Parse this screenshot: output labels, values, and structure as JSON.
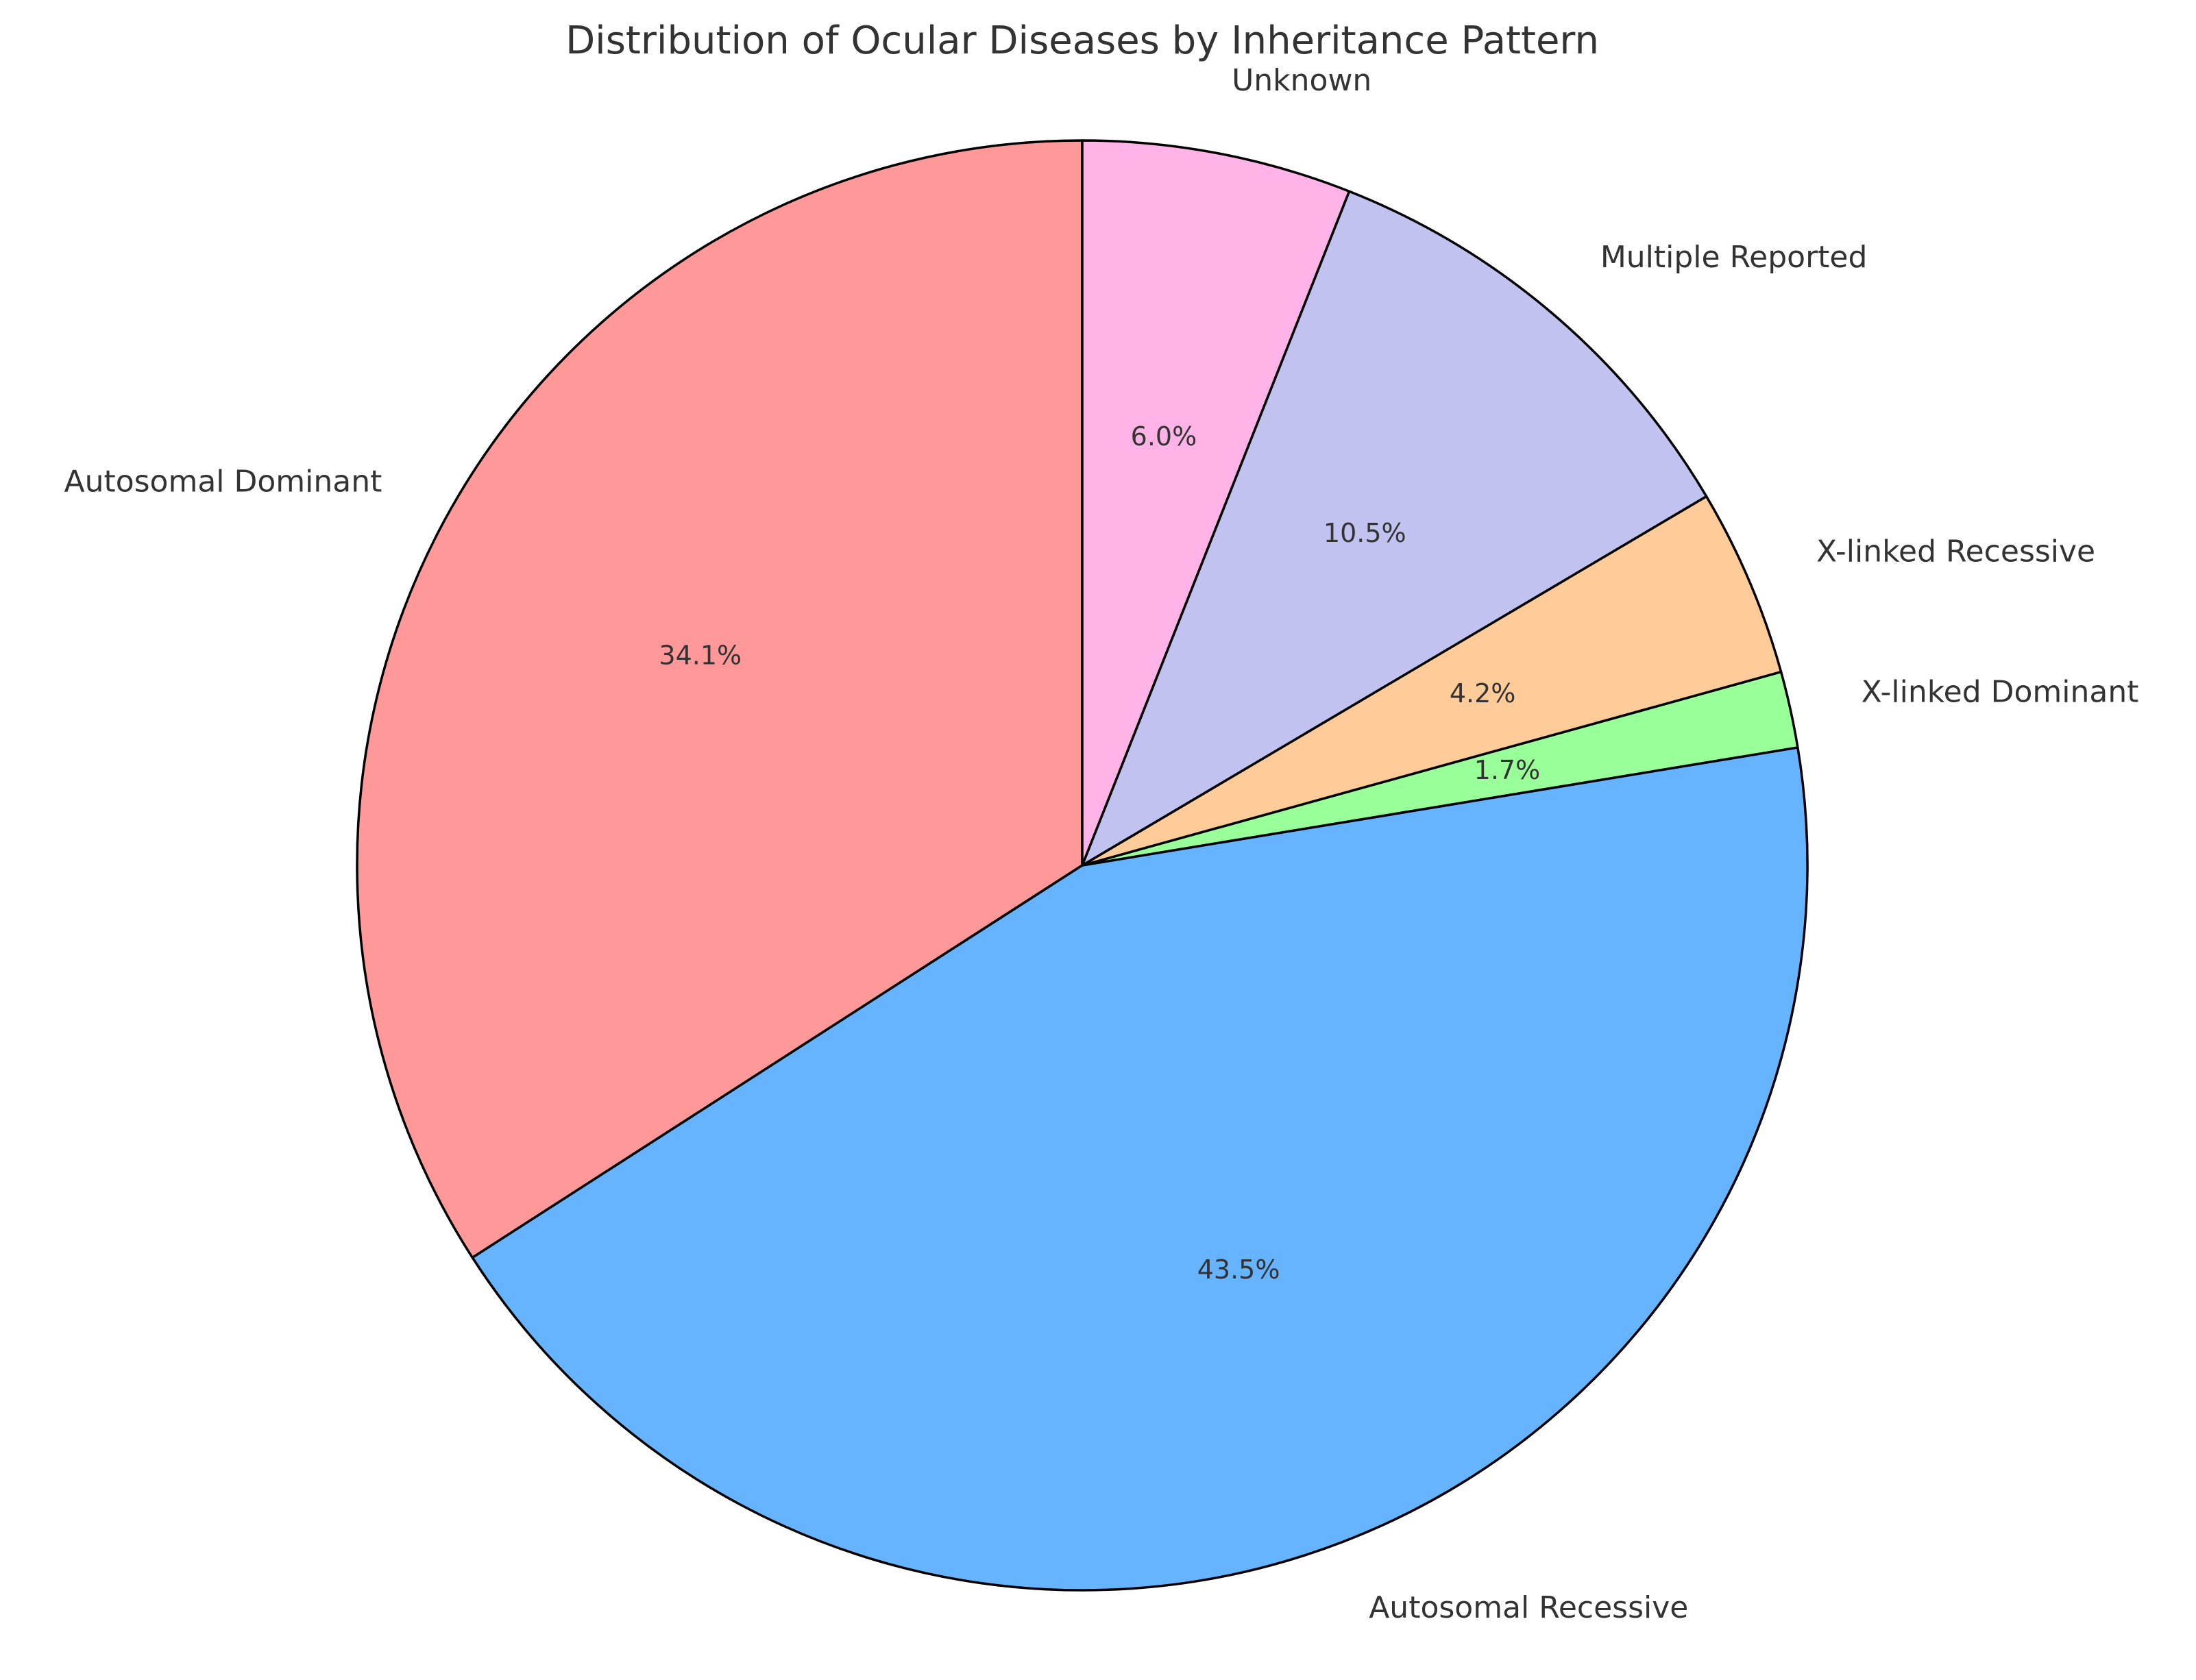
{
  "chart_data": {
    "type": "pie",
    "title": "Distribution of Ocular Diseases by Inheritance Pattern",
    "start_angle_deg": 90,
    "direction": "counterclockwise",
    "slices": [
      {
        "label": "Autosomal Dominant",
        "percent": 34.1,
        "percent_label": "34.1%",
        "color": "#FF9999"
      },
      {
        "label": "Autosomal Recessive",
        "percent": 43.5,
        "percent_label": "43.5%",
        "color": "#66B3FF"
      },
      {
        "label": "X-linked Dominant",
        "percent": 1.7,
        "percent_label": "1.7%",
        "color": "#99FF99"
      },
      {
        "label": "X-linked Recessive",
        "percent": 4.2,
        "percent_label": "4.2%",
        "color": "#FFCC99"
      },
      {
        "label": "Multiple Reported",
        "percent": 10.5,
        "percent_label": "10.5%",
        "color": "#C2C2F0"
      },
      {
        "label": "Unknown",
        "percent": 6.0,
        "percent_label": "6.0%",
        "color": "#FFB3E6"
      }
    ]
  }
}
